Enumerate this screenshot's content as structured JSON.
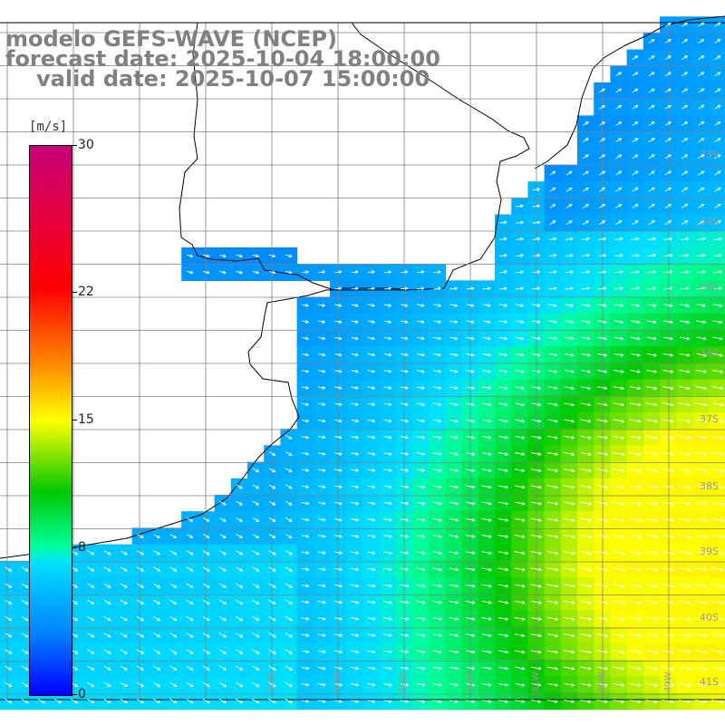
{
  "title": {
    "line1": "modelo GEFS-WAVE (NCEP)",
    "line2": "forecast date: 2025-10-04 18:00:00",
    "line3": "valid date: 2025-10-07 15:00:00"
  },
  "colorbar": {
    "units": "[m/s]",
    "min": 0,
    "max": 30,
    "labels": [
      "30",
      "22",
      "15",
      "8",
      "0"
    ],
    "label_values": [
      30,
      22,
      15,
      8,
      0
    ],
    "colors": [
      "#c8007a",
      "#ff0000",
      "#ff8c00",
      "#ffff00",
      "#00c800",
      "#00ffa0",
      "#00e0ff",
      "#0080ff",
      "#0000ff"
    ]
  },
  "map": {
    "land_color": "#ffffff",
    "coast_color": "#000000",
    "grid_color": "#808080",
    "arrow_color": "#ffffff",
    "lat_labels": [
      "33S",
      "34S",
      "35S",
      "36S",
      "37S",
      "38S",
      "39S",
      "40S",
      "41S"
    ],
    "lon_labels": [
      "55W",
      "54W",
      "53W",
      "52W",
      "51W",
      "50W",
      "49W"
    ],
    "wind_direction": "east-southeast",
    "speed_range_ms": [
      3,
      16
    ]
  }
}
